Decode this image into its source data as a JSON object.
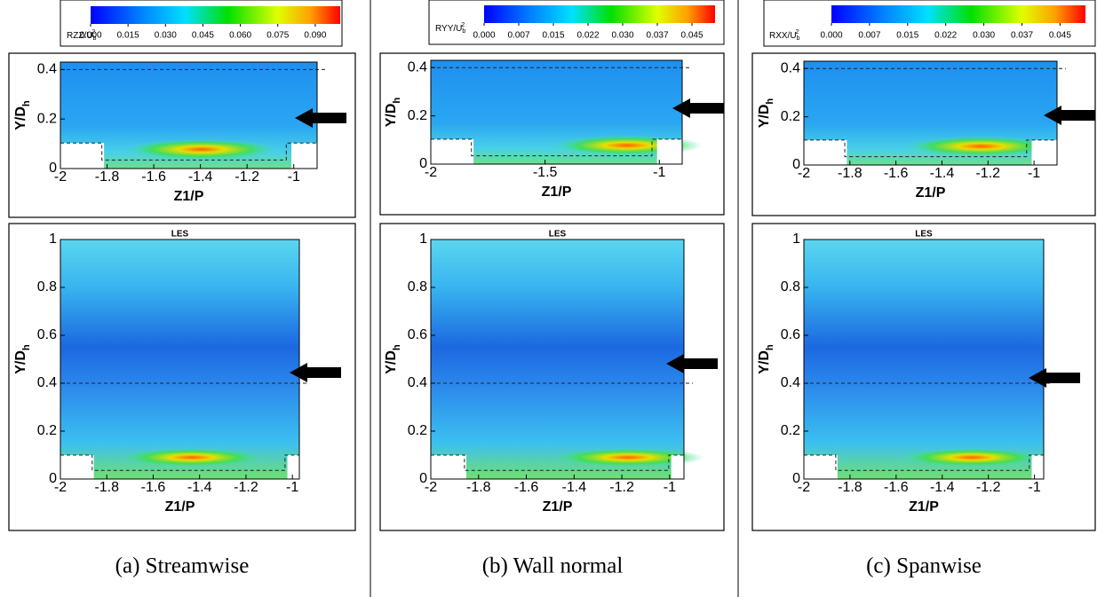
{
  "columns": [
    {
      "caption": "(a) Streamwise",
      "colorbar": {
        "label": {
          "text": "RZZ/U",
          "sub": "b",
          "sup": "2"
        },
        "lim": [
          0,
          0.1
        ],
        "ticks": [
          {
            "value": 0,
            "label": "0.000"
          },
          {
            "value": 0.015,
            "label": "0.015"
          },
          {
            "value": 0.03,
            "label": "0.030"
          },
          {
            "value": 0.045,
            "label": "0.045"
          },
          {
            "value": 0.06,
            "label": "0.060"
          },
          {
            "value": 0.075,
            "label": "0.075"
          },
          {
            "value": 0.09,
            "label": "0.090"
          }
        ]
      },
      "top": {
        "xlabel": "Z1/P",
        "ylabel": {
          "text": "Y/D",
          "sub": "h"
        },
        "xlim": [
          -2,
          -0.9
        ],
        "ylim": [
          0,
          0.43
        ],
        "xticks": [
          -2,
          -1.8,
          -1.6,
          -1.4,
          -1.2,
          -1
        ],
        "yticks": [
          0,
          0.2,
          0.4
        ]
      },
      "bottom": {
        "title": "LES",
        "xlabel": "Z1/P",
        "ylabel": {
          "text": "Y/D",
          "sub": "h"
        },
        "xlim": [
          -2,
          -0.97
        ],
        "ylim": [
          0,
          1
        ],
        "xticks": [
          -2,
          -1.8,
          -1.6,
          -1.4,
          -1.2,
          -1
        ],
        "yticks": [
          0,
          0.2,
          0.4,
          0.6,
          0.8,
          1
        ]
      }
    },
    {
      "caption": "(b) Wall normal",
      "colorbar": {
        "label": {
          "text": "RYY/U",
          "sub": "b",
          "sup": "2"
        },
        "lim": [
          0,
          0.05
        ],
        "ticks": [
          {
            "value": 0,
            "label": "0.000"
          },
          {
            "value": 0.0075,
            "label": "0.007"
          },
          {
            "value": 0.015,
            "label": "0.015"
          },
          {
            "value": 0.0225,
            "label": "0.022"
          },
          {
            "value": 0.03,
            "label": "0.030"
          },
          {
            "value": 0.0375,
            "label": "0.037"
          },
          {
            "value": 0.045,
            "label": "0.045"
          }
        ]
      },
      "top": {
        "xlabel": "Z1/P",
        "ylabel": {
          "text": "Y/D",
          "sub": "h"
        },
        "xlim": [
          -2,
          -0.9
        ],
        "ylim": [
          0,
          0.43
        ],
        "xticks": [
          -2,
          -1.5,
          -1
        ],
        "yticks": [
          0,
          0.2,
          0.4
        ]
      },
      "bottom": {
        "title": "LES",
        "xlabel": "Z1/P",
        "ylabel": {
          "text": "Y/D",
          "sub": "h"
        },
        "xlim": [
          -2,
          -0.94
        ],
        "ylim": [
          0,
          1
        ],
        "xticks": [
          -2,
          -1.8,
          -1.6,
          -1.4,
          -1.2,
          -1
        ],
        "yticks": [
          0,
          0.2,
          0.4,
          0.6,
          0.8,
          1
        ]
      }
    },
    {
      "caption": "(c) Spanwise",
      "colorbar": {
        "label": {
          "text": "RXX/U",
          "sub": "b",
          "sup": "2"
        },
        "lim": [
          0,
          0.05
        ],
        "ticks": [
          {
            "value": 0,
            "label": "0.000"
          },
          {
            "value": 0.0075,
            "label": "0.007"
          },
          {
            "value": 0.015,
            "label": "0.015"
          },
          {
            "value": 0.0225,
            "label": "0.022"
          },
          {
            "value": 0.03,
            "label": "0.030"
          },
          {
            "value": 0.0375,
            "label": "0.037"
          },
          {
            "value": 0.045,
            "label": "0.045"
          }
        ]
      },
      "top": {
        "xlabel": "Z1/P",
        "ylabel": {
          "text": "Y/D",
          "sub": "h"
        },
        "xlim": [
          -2,
          -0.9
        ],
        "ylim": [
          0,
          0.43
        ],
        "xticks": [
          -2,
          -1.8,
          -1.6,
          -1.4,
          -1.2,
          -1
        ],
        "yticks": [
          0,
          0.2,
          0.4
        ]
      },
      "bottom": {
        "title": "LES",
        "xlabel": "Z1/P",
        "ylabel": {
          "text": "Y/D",
          "sub": "h"
        },
        "xlim": [
          -2,
          -0.96
        ],
        "ylim": [
          0,
          1
        ],
        "xticks": [
          -2,
          -1.8,
          -1.6,
          -1.4,
          -1.2,
          -1
        ],
        "yticks": [
          0,
          0.2,
          0.4,
          0.6,
          0.8,
          1
        ]
      }
    }
  ]
}
